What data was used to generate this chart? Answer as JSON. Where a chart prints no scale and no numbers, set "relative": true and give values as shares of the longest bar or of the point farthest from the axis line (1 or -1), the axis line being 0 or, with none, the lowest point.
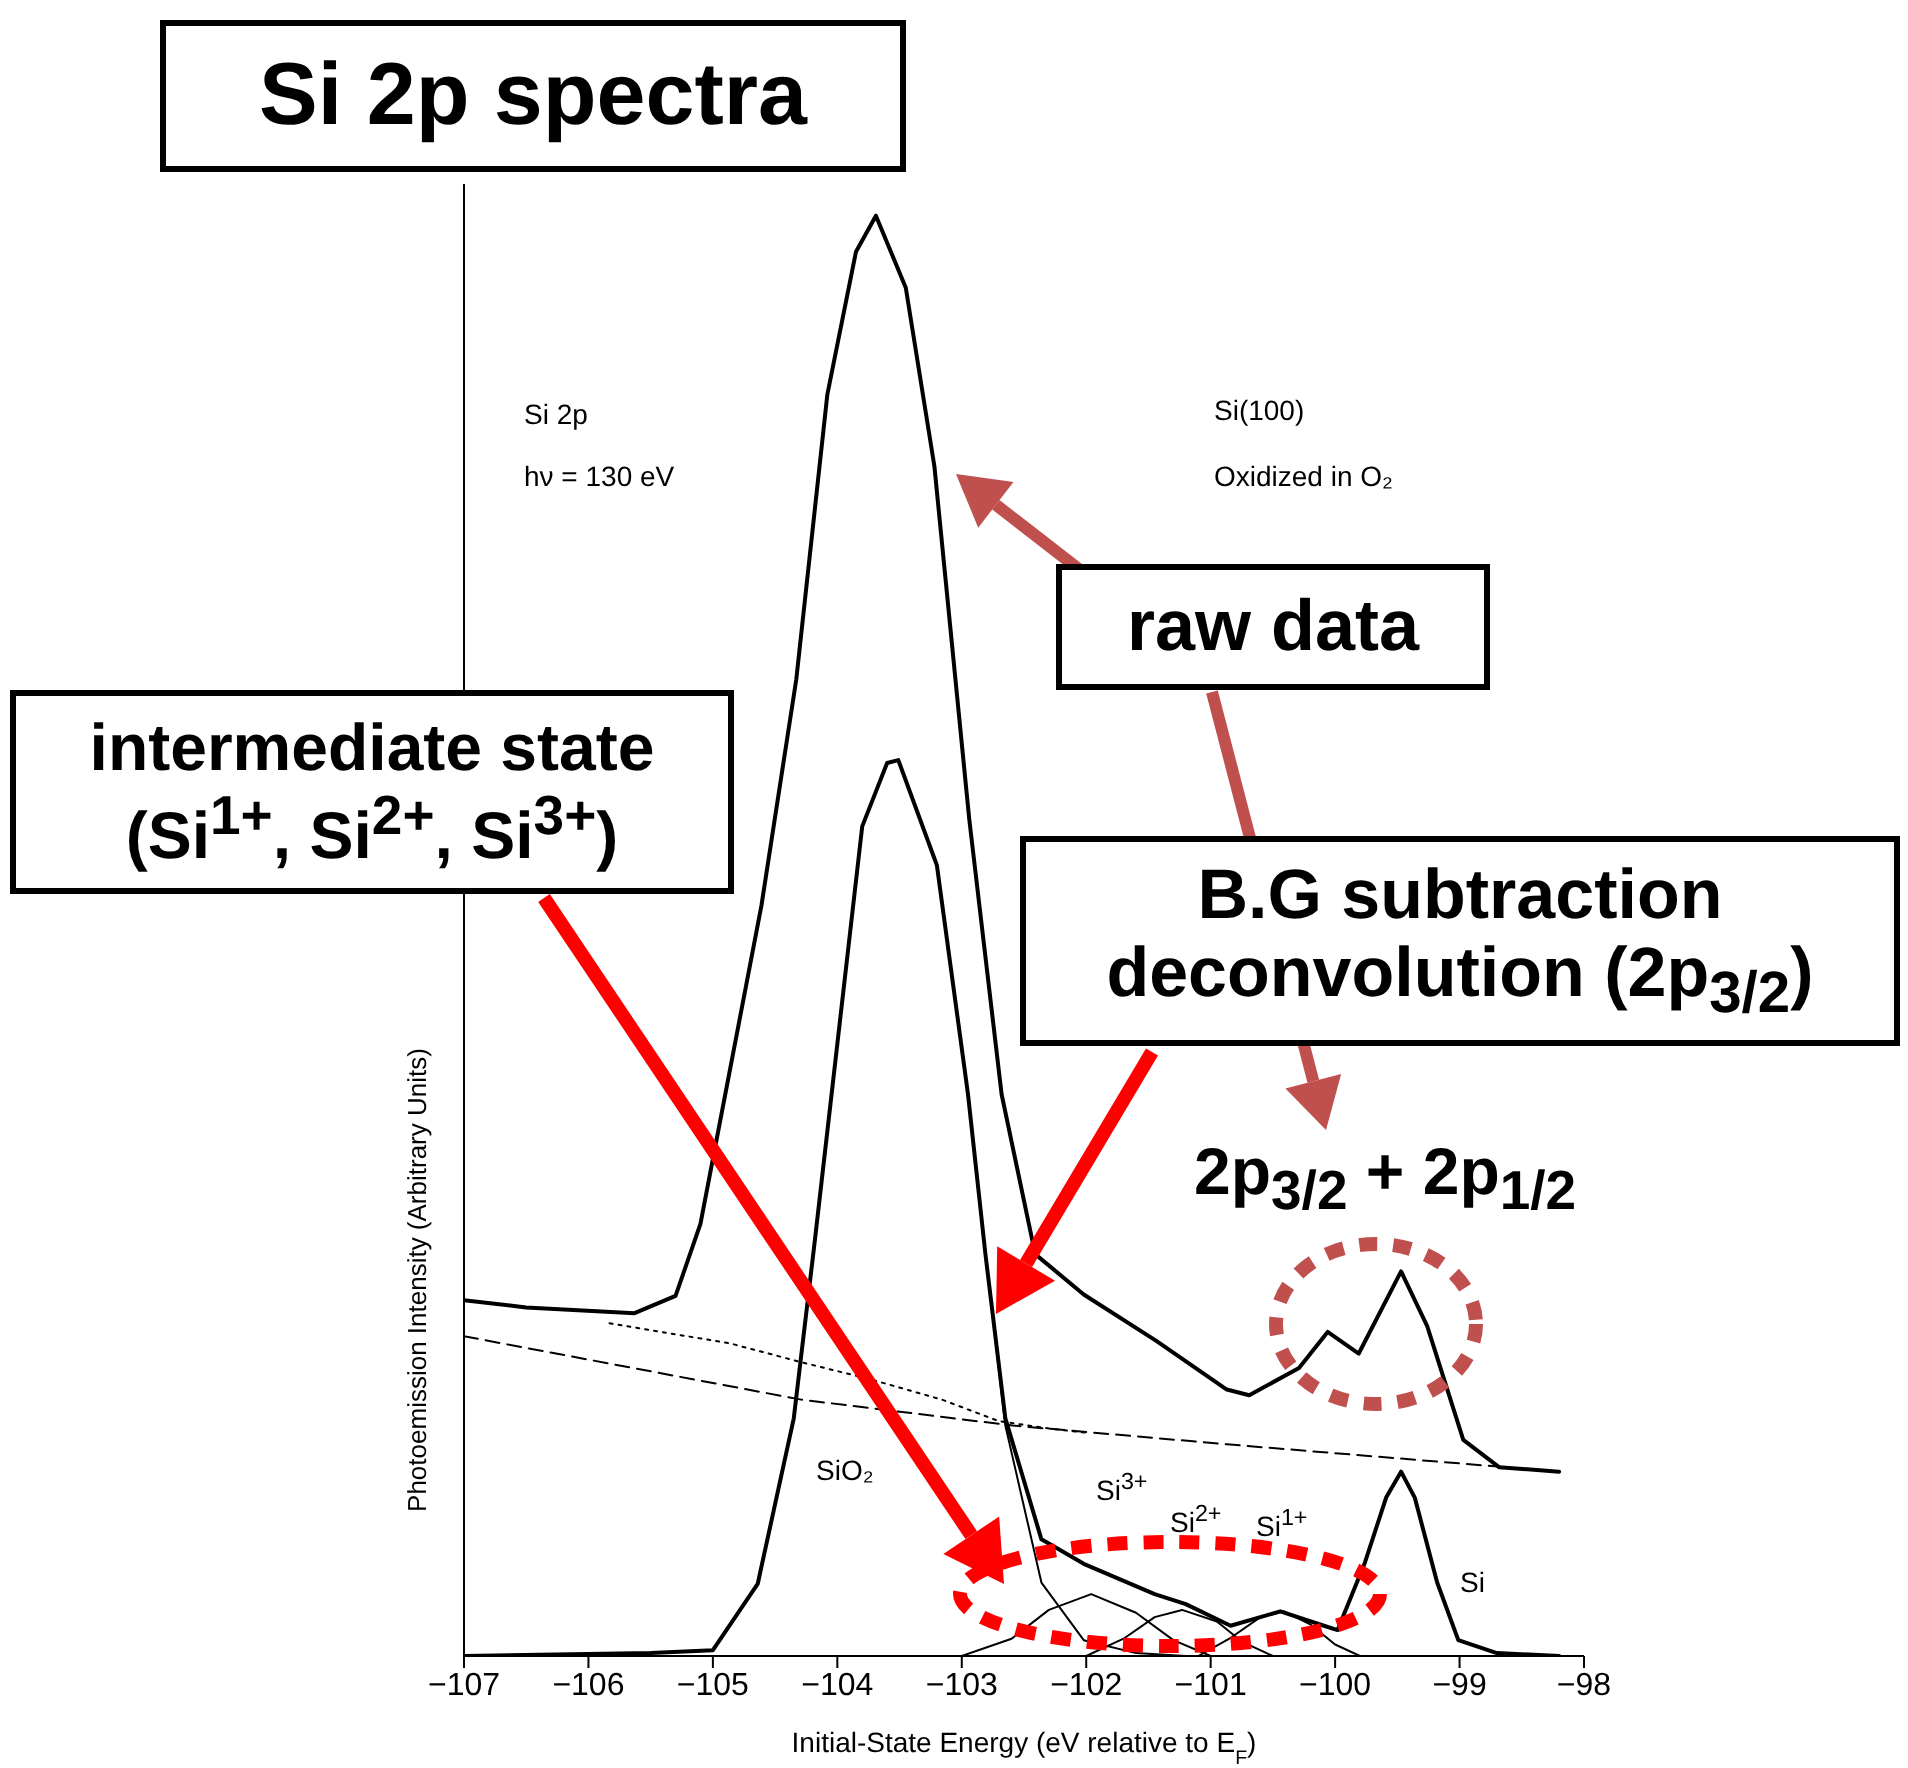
{
  "chart_data": {
    "type": "line",
    "title": "Si 2p spectra",
    "xlabel": "Initial-State Energy (eV relative to E$_{F}$)",
    "ylabel": "Photoemission Intensity (Arbitrary Units)",
    "relative": true,
    "xlim": [
      -107,
      -98
    ],
    "xticks": [
      -107,
      -106,
      -105,
      -104,
      -103,
      -102,
      -101,
      -100,
      -99,
      -98
    ],
    "tick_labels": "x",
    "series": [
      {
        "color": "#000000",
        "line_style": "solid",
        "x": [
          -107.0,
          -106.5,
          -105.63,
          -105.3,
          -105.1,
          -104.61,
          -104.33,
          -104.08,
          -103.85,
          -103.69,
          -103.45,
          -103.22,
          -102.94,
          -102.68,
          -102.41,
          -102.02,
          -101.44,
          -100.87,
          -100.69,
          -100.29,
          -100.06,
          -99.81,
          -99.47,
          -99.26,
          -98.97,
          -98.68,
          -98.2
        ],
        "values": [
          0.247,
          0.242,
          0.238,
          0.25,
          0.3,
          0.521,
          0.678,
          0.876,
          0.975,
          1.0,
          0.95,
          0.826,
          0.581,
          0.39,
          0.279,
          0.251,
          0.219,
          0.185,
          0.181,
          0.2,
          0.225,
          0.21,
          0.267,
          0.229,
          0.15,
          0.131,
          0.128
        ]
      },
      {
        "color": "#000000",
        "line_style": "solid",
        "x": [
          -107,
          -105.5,
          -105.0,
          -104.64,
          -104.35,
          -104.18,
          -103.8,
          -103.6,
          -103.51,
          -103.2,
          -102.95,
          -102.81,
          -102.65,
          -102.36,
          -102.02,
          -101.45,
          -101.2,
          -100.84,
          -100.44,
          -100.09,
          -99.98,
          -99.76,
          -99.59,
          -99.47,
          -99.36,
          -99.18,
          -99.01,
          -98.7,
          -98.2
        ],
        "values": [
          0,
          0.002,
          0.004,
          0.05,
          0.165,
          0.289,
          0.576,
          0.62,
          0.622,
          0.549,
          0.39,
          0.279,
          0.165,
          0.081,
          0.064,
          0.043,
          0.036,
          0.021,
          0.031,
          0.021,
          0.018,
          0.065,
          0.11,
          0.128,
          0.11,
          0.051,
          0.011,
          0.002,
          0
        ]
      },
      {
        "color": "#000000",
        "line_style": "solid",
        "x": [
          -102.81,
          -102.65,
          -102.36,
          -102.02,
          -101.6,
          -101.2
        ],
        "values": [
          0.279,
          0.16,
          0.051,
          0.011,
          0.002,
          0
        ]
      },
      {
        "color": "#000000",
        "line_style": "solid",
        "x": [
          -103.0,
          -102.6,
          -102.3,
          -101.96,
          -101.6,
          -101.3,
          -101.0
        ],
        "values": [
          0,
          0.012,
          0.032,
          0.043,
          0.03,
          0.011,
          0
        ]
      },
      {
        "color": "#000000",
        "line_style": "solid",
        "x": [
          -102.0,
          -101.7,
          -101.45,
          -101.23,
          -100.95,
          -100.75,
          -100.5
        ],
        "values": [
          0,
          0.012,
          0.027,
          0.032,
          0.024,
          0.01,
          0
        ]
      },
      {
        "color": "#000000",
        "line_style": "solid",
        "x": [
          -101.1,
          -100.85,
          -100.6,
          -100.41,
          -100.2,
          -100.0,
          -99.8
        ],
        "values": [
          0,
          0.012,
          0.027,
          0.031,
          0.022,
          0.008,
          0
        ]
      },
      {
        "color": "#000000",
        "line_style": "dotted",
        "x": [
          -105.83,
          -104.86,
          -104.29,
          -103.73,
          -103.16,
          -102.7,
          -102.3,
          -102.0
        ],
        "values": [
          0.231,
          0.217,
          0.204,
          0.192,
          0.178,
          0.163,
          0.158,
          0.155
        ]
      },
      {
        "color": "#000000",
        "line_style": "dashed",
        "x": [
          -107,
          -104.29,
          -102.59,
          -100.87,
          -99.18,
          -98.2
        ],
        "values": [
          0.222,
          0.178,
          0.16,
          0.147,
          0.135,
          0.128
        ]
      }
    ],
    "annotations": [
      "Si 2p",
      "hν = 130 eV",
      "Si(100)",
      "Oxidized in O₂",
      "SiO₂",
      "Si$^{3+}$",
      "Si$^{2+}$",
      "Si$^{1+}$",
      "Si",
      "raw data",
      "intermediate state (Si$^{1+}$, Si$^{2+}$, Si$^{3+}$)",
      "B.G subtraction deconvolution (2p$_{3/2}$)",
      "2p$_{3/2}$ + 2p$_{1/2}$"
    ]
  }
}
